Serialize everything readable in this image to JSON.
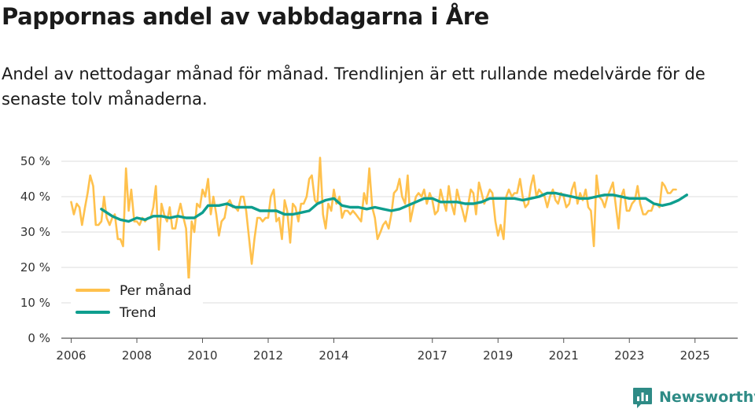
{
  "chart_data": {
    "type": "line",
    "title": "Pappornas andel av vabbdagarna i Åre",
    "subtitle": "Andel av nettodagar månad för månad. Trendlinjen är ett rullande medelvärde för de senaste tolv månaderna.",
    "xlabel": "",
    "ylabel": "",
    "ylim": [
      0,
      50
    ],
    "xlim": [
      2005.7,
      2026.3
    ],
    "y_ticks": [
      0,
      10,
      20,
      30,
      40,
      50
    ],
    "y_tick_labels": [
      "0 %",
      "10 %",
      "20 %",
      "30 %",
      "40 %",
      "50 %"
    ],
    "x_ticks": [
      2006,
      2008,
      2010,
      2012,
      2014,
      2017,
      2019,
      2021,
      2023,
      2025
    ],
    "x_tick_labels": [
      "2006",
      "2008",
      "2010",
      "2012",
      "2014",
      "2017",
      "2019",
      "2021",
      "2023",
      "2025"
    ],
    "grid": "horizontal",
    "legend_position": "bottom-left",
    "series": [
      {
        "name": "Per månad",
        "color": "#ffc14d",
        "points": [
          [
            2006.0,
            38.5
          ],
          [
            2006.08,
            35
          ],
          [
            2006.17,
            38
          ],
          [
            2006.25,
            37
          ],
          [
            2006.33,
            32
          ],
          [
            2006.42,
            37
          ],
          [
            2006.5,
            41
          ],
          [
            2006.58,
            46
          ],
          [
            2006.67,
            43
          ],
          [
            2006.75,
            32
          ],
          [
            2006.83,
            32
          ],
          [
            2006.92,
            33
          ],
          [
            2007.0,
            40
          ],
          [
            2007.08,
            34
          ],
          [
            2007.17,
            32
          ],
          [
            2007.25,
            34
          ],
          [
            2007.33,
            35
          ],
          [
            2007.42,
            28
          ],
          [
            2007.5,
            28
          ],
          [
            2007.58,
            26
          ],
          [
            2007.67,
            48
          ],
          [
            2007.75,
            36
          ],
          [
            2007.83,
            42
          ],
          [
            2007.92,
            33
          ],
          [
            2008.0,
            33
          ],
          [
            2008.08,
            32
          ],
          [
            2008.17,
            34
          ],
          [
            2008.25,
            33
          ],
          [
            2008.33,
            34
          ],
          [
            2008.42,
            34
          ],
          [
            2008.5,
            37
          ],
          [
            2008.58,
            43
          ],
          [
            2008.67,
            25
          ],
          [
            2008.75,
            38
          ],
          [
            2008.83,
            35
          ],
          [
            2008.92,
            33
          ],
          [
            2009.0,
            37
          ],
          [
            2009.08,
            31
          ],
          [
            2009.17,
            31
          ],
          [
            2009.25,
            35
          ],
          [
            2009.33,
            38
          ],
          [
            2009.42,
            34
          ],
          [
            2009.5,
            31
          ],
          [
            2009.58,
            16
          ],
          [
            2009.67,
            33
          ],
          [
            2009.75,
            30
          ],
          [
            2009.83,
            38
          ],
          [
            2009.92,
            37
          ],
          [
            2010.0,
            42
          ],
          [
            2010.08,
            40
          ],
          [
            2010.17,
            45
          ],
          [
            2010.25,
            35
          ],
          [
            2010.33,
            40
          ],
          [
            2010.42,
            35
          ],
          [
            2010.5,
            29
          ],
          [
            2010.58,
            33
          ],
          [
            2010.67,
            34
          ],
          [
            2010.75,
            38
          ],
          [
            2010.83,
            39
          ],
          [
            2010.92,
            37
          ],
          [
            2011.0,
            37
          ],
          [
            2011.08,
            36
          ],
          [
            2011.17,
            40
          ],
          [
            2011.25,
            40
          ],
          [
            2011.33,
            36
          ],
          [
            2011.42,
            28
          ],
          [
            2011.5,
            21
          ],
          [
            2011.58,
            28
          ],
          [
            2011.67,
            34
          ],
          [
            2011.75,
            34
          ],
          [
            2011.83,
            33
          ],
          [
            2011.92,
            34
          ],
          [
            2012.0,
            34
          ],
          [
            2012.08,
            40
          ],
          [
            2012.17,
            42
          ],
          [
            2012.25,
            33
          ],
          [
            2012.33,
            34
          ],
          [
            2012.42,
            28
          ],
          [
            2012.5,
            39
          ],
          [
            2012.58,
            36
          ],
          [
            2012.67,
            27
          ],
          [
            2012.75,
            38
          ],
          [
            2012.83,
            37
          ],
          [
            2012.92,
            33
          ],
          [
            2013.0,
            38
          ],
          [
            2013.08,
            38
          ],
          [
            2013.17,
            40
          ],
          [
            2013.25,
            45
          ],
          [
            2013.33,
            46
          ],
          [
            2013.42,
            39
          ],
          [
            2013.5,
            38
          ],
          [
            2013.58,
            51
          ],
          [
            2013.67,
            35
          ],
          [
            2013.75,
            31
          ],
          [
            2013.83,
            38
          ],
          [
            2013.92,
            36
          ],
          [
            2014.0,
            42
          ],
          [
            2014.08,
            38
          ],
          [
            2014.17,
            40
          ],
          [
            2014.25,
            34
          ],
          [
            2014.33,
            36
          ],
          [
            2014.42,
            36
          ],
          [
            2014.5,
            35
          ],
          [
            2014.58,
            36
          ],
          [
            2014.67,
            35
          ],
          [
            2014.75,
            34
          ],
          [
            2014.83,
            33
          ],
          [
            2014.92,
            41
          ],
          [
            2015.0,
            38
          ],
          [
            2015.08,
            48
          ],
          [
            2015.17,
            37
          ],
          [
            2015.25,
            34
          ],
          [
            2015.33,
            28
          ],
          [
            2015.42,
            30
          ],
          [
            2015.5,
            32
          ],
          [
            2015.58,
            33
          ],
          [
            2015.67,
            31
          ],
          [
            2015.75,
            35
          ],
          [
            2015.83,
            41
          ],
          [
            2015.92,
            42
          ],
          [
            2016.0,
            45
          ],
          [
            2016.08,
            40
          ],
          [
            2016.17,
            38
          ],
          [
            2016.25,
            46
          ],
          [
            2016.33,
            33
          ],
          [
            2016.42,
            37
          ],
          [
            2016.5,
            40
          ],
          [
            2016.58,
            41
          ],
          [
            2016.67,
            40
          ],
          [
            2016.75,
            42
          ],
          [
            2016.83,
            38
          ],
          [
            2016.92,
            41
          ],
          [
            2017.0,
            39
          ],
          [
            2017.08,
            35
          ],
          [
            2017.17,
            36
          ],
          [
            2017.25,
            42
          ],
          [
            2017.33,
            39
          ],
          [
            2017.42,
            36
          ],
          [
            2017.5,
            43
          ],
          [
            2017.58,
            38
          ],
          [
            2017.67,
            35
          ],
          [
            2017.75,
            42
          ],
          [
            2017.83,
            39
          ],
          [
            2017.92,
            36
          ],
          [
            2018.0,
            33
          ],
          [
            2018.08,
            37
          ],
          [
            2018.17,
            42
          ],
          [
            2018.25,
            41
          ],
          [
            2018.33,
            35
          ],
          [
            2018.42,
            44
          ],
          [
            2018.5,
            41
          ],
          [
            2018.58,
            38
          ],
          [
            2018.67,
            40
          ],
          [
            2018.75,
            42
          ],
          [
            2018.83,
            41
          ],
          [
            2018.92,
            33
          ],
          [
            2019.0,
            29
          ],
          [
            2019.08,
            32
          ],
          [
            2019.17,
            28
          ],
          [
            2019.25,
            40
          ],
          [
            2019.33,
            42
          ],
          [
            2019.42,
            40
          ],
          [
            2019.5,
            41
          ],
          [
            2019.58,
            41
          ],
          [
            2019.67,
            45
          ],
          [
            2019.75,
            40
          ],
          [
            2019.83,
            37
          ],
          [
            2019.92,
            38
          ],
          [
            2020.0,
            43
          ],
          [
            2020.08,
            46
          ],
          [
            2020.17,
            40
          ],
          [
            2020.25,
            42
          ],
          [
            2020.33,
            41
          ],
          [
            2020.42,
            40
          ],
          [
            2020.5,
            37
          ],
          [
            2020.58,
            40
          ],
          [
            2020.67,
            42
          ],
          [
            2020.75,
            39
          ],
          [
            2020.83,
            38
          ],
          [
            2020.92,
            41
          ],
          [
            2021.0,
            40
          ],
          [
            2021.08,
            37
          ],
          [
            2021.17,
            38
          ],
          [
            2021.25,
            42
          ],
          [
            2021.33,
            44
          ],
          [
            2021.42,
            38
          ],
          [
            2021.5,
            41
          ],
          [
            2021.58,
            39
          ],
          [
            2021.67,
            42
          ],
          [
            2021.75,
            37
          ],
          [
            2021.83,
            36
          ],
          [
            2021.92,
            26
          ],
          [
            2022.0,
            46
          ],
          [
            2022.08,
            40
          ],
          [
            2022.17,
            39
          ],
          [
            2022.25,
            37
          ],
          [
            2022.33,
            40
          ],
          [
            2022.42,
            42
          ],
          [
            2022.5,
            44
          ],
          [
            2022.58,
            38
          ],
          [
            2022.67,
            31
          ],
          [
            2022.75,
            40
          ],
          [
            2022.83,
            42
          ],
          [
            2022.92,
            36
          ],
          [
            2023.0,
            36
          ],
          [
            2023.08,
            38
          ],
          [
            2023.17,
            39
          ],
          [
            2023.25,
            43
          ],
          [
            2023.33,
            38
          ],
          [
            2023.42,
            35
          ],
          [
            2023.5,
            35
          ],
          [
            2023.58,
            36
          ],
          [
            2023.67,
            36
          ],
          [
            2023.75,
            38
          ],
          [
            2023.83,
            38
          ],
          [
            2023.92,
            37
          ],
          [
            2024.0,
            44
          ],
          [
            2024.08,
            43
          ],
          [
            2024.17,
            41
          ],
          [
            2024.25,
            41
          ],
          [
            2024.33,
            42
          ],
          [
            2024.42,
            42
          ]
        ]
      },
      {
        "name": "Trend",
        "color": "#0e9e8e",
        "points": [
          [
            2006.92,
            36.5
          ],
          [
            2007.25,
            34.5
          ],
          [
            2007.5,
            33.5
          ],
          [
            2007.75,
            33
          ],
          [
            2008.0,
            34
          ],
          [
            2008.25,
            33.5
          ],
          [
            2008.5,
            34.5
          ],
          [
            2008.75,
            34.5
          ],
          [
            2009.0,
            34
          ],
          [
            2009.25,
            34.5
          ],
          [
            2009.5,
            34
          ],
          [
            2009.75,
            34
          ],
          [
            2010.0,
            35.5
          ],
          [
            2010.17,
            37.5
          ],
          [
            2010.5,
            37.5
          ],
          [
            2010.75,
            38
          ],
          [
            2011.0,
            37
          ],
          [
            2011.25,
            37
          ],
          [
            2011.5,
            37
          ],
          [
            2011.75,
            36
          ],
          [
            2012.0,
            36
          ],
          [
            2012.25,
            36
          ],
          [
            2012.5,
            35
          ],
          [
            2012.75,
            35
          ],
          [
            2013.0,
            35.5
          ],
          [
            2013.25,
            36
          ],
          [
            2013.5,
            38
          ],
          [
            2013.75,
            39
          ],
          [
            2014.0,
            39.5
          ],
          [
            2014.25,
            37.5
          ],
          [
            2014.5,
            37
          ],
          [
            2014.75,
            37
          ],
          [
            2015.0,
            36.5
          ],
          [
            2015.25,
            37
          ],
          [
            2015.5,
            36.5
          ],
          [
            2015.75,
            36
          ],
          [
            2016.0,
            36.5
          ],
          [
            2016.25,
            37.5
          ],
          [
            2016.5,
            38.5
          ],
          [
            2016.75,
            39.5
          ],
          [
            2017.0,
            39.5
          ],
          [
            2017.25,
            38.5
          ],
          [
            2017.5,
            38.5
          ],
          [
            2017.75,
            38.5
          ],
          [
            2018.0,
            38
          ],
          [
            2018.25,
            38
          ],
          [
            2018.5,
            38.5
          ],
          [
            2018.75,
            39.5
          ],
          [
            2019.0,
            39.5
          ],
          [
            2019.25,
            39.5
          ],
          [
            2019.5,
            39.5
          ],
          [
            2019.75,
            39
          ],
          [
            2020.0,
            39.5
          ],
          [
            2020.25,
            40
          ],
          [
            2020.5,
            41
          ],
          [
            2020.75,
            41
          ],
          [
            2021.0,
            40.5
          ],
          [
            2021.25,
            40
          ],
          [
            2021.5,
            39.5
          ],
          [
            2021.75,
            39.5
          ],
          [
            2022.0,
            40
          ],
          [
            2022.25,
            40.5
          ],
          [
            2022.5,
            40.5
          ],
          [
            2022.75,
            40
          ],
          [
            2023.0,
            39.5
          ],
          [
            2023.25,
            39.5
          ],
          [
            2023.5,
            39.5
          ],
          [
            2023.75,
            38
          ],
          [
            2024.0,
            37.5
          ],
          [
            2024.25,
            38
          ],
          [
            2024.5,
            39
          ],
          [
            2024.75,
            40.5
          ]
        ]
      }
    ]
  },
  "branding": {
    "logo_text": "Newsworthy",
    "logo_color": "#2e8b86"
  }
}
